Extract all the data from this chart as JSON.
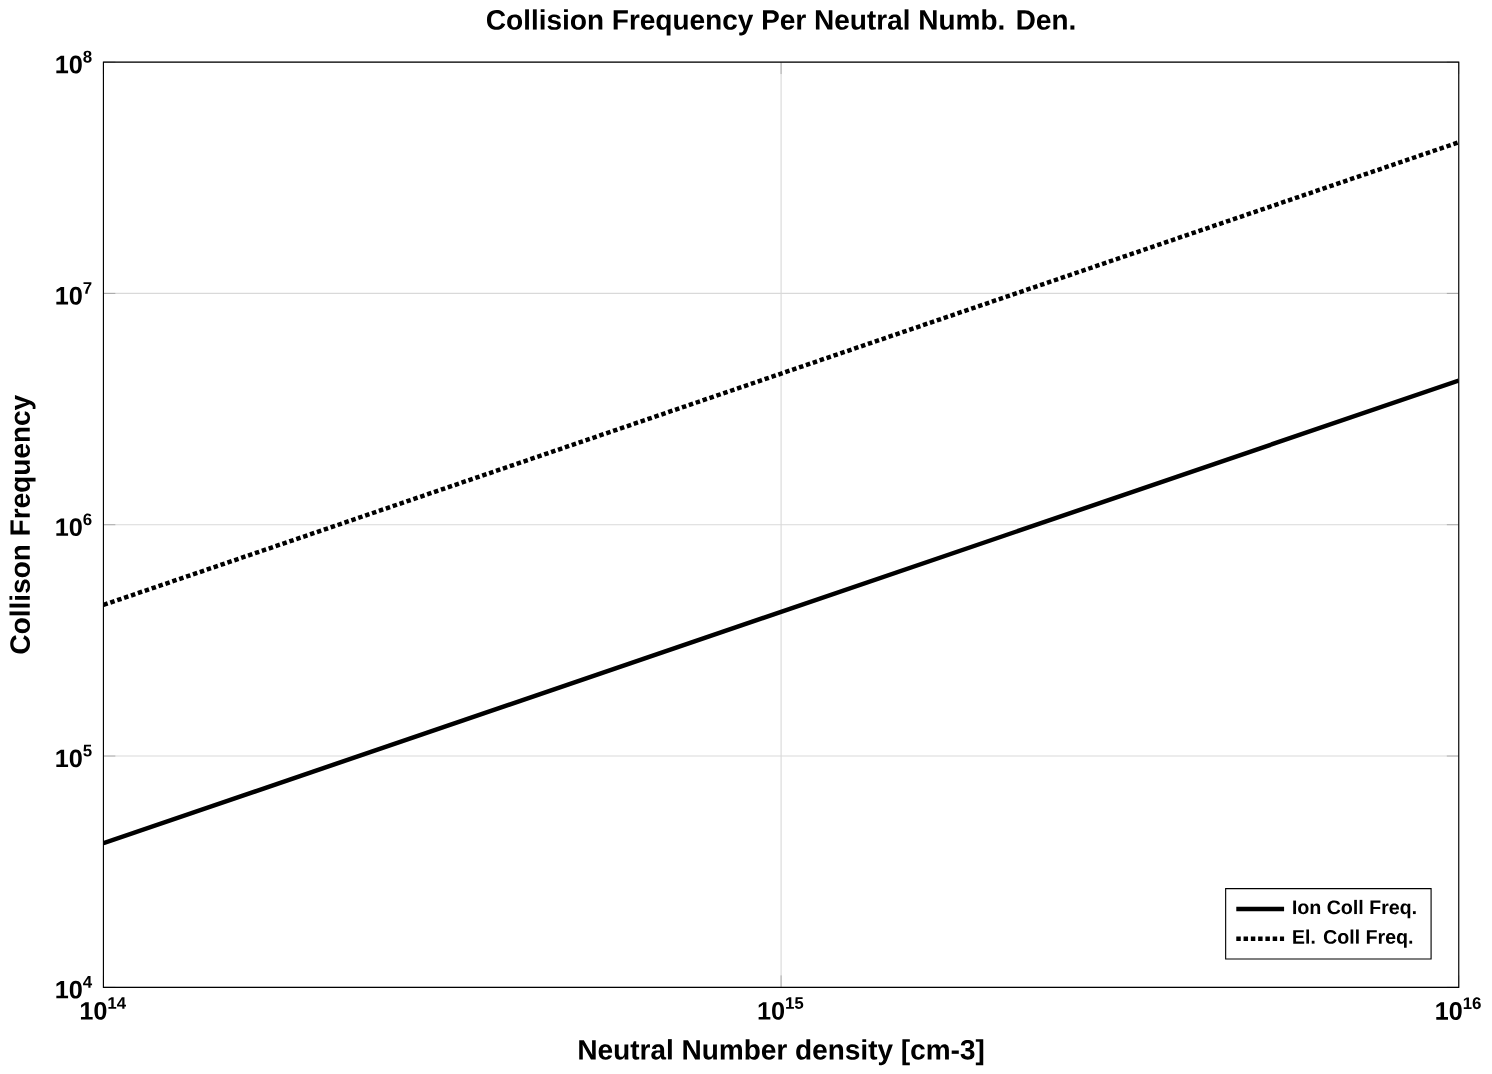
{
  "chart_data": {
    "type": "line",
    "title": "Collision Frequency Per Neutral Numb. Den.",
    "xlabel": "Neutral Number density [cm-3]",
    "ylabel": "Collison Frequency",
    "x": [
      100000000000000.0,
      1000000000000000.0,
      1e+16
    ],
    "series": [
      {
        "name": "Ion Coll Freq.",
        "color": "#000000",
        "line_style": "solid",
        "values": [
          42000.0,
          420000.0,
          4200000.0
        ]
      },
      {
        "name": "El. Coll Freq.",
        "color": "#000000",
        "line_style": "dotted",
        "values": [
          450000.0,
          4500000.0,
          45000000.0
        ]
      }
    ],
    "log": "xy",
    "xlim": [
      100000000000000.0,
      1e+16
    ],
    "ylim": [
      10000.0,
      100000000.0
    ],
    "xticks": [
      {
        "value": 100000000000000.0,
        "label": "10$^{14}$"
      },
      {
        "value": 1000000000000000.0,
        "label": "10$^{15}$"
      },
      {
        "value": 1e+16,
        "label": "10$^{16}$"
      }
    ],
    "yticks": [
      {
        "value": 10000.0,
        "label": "10$^{4}$"
      },
      {
        "value": 100000.0,
        "label": "10$^{5}$"
      },
      {
        "value": 1000000.0,
        "label": "10$^{6}$"
      },
      {
        "value": 10000000.0,
        "label": "10$^{7}$"
      },
      {
        "value": 100000000.0,
        "label": "10$^{8}$"
      }
    ],
    "grid": true,
    "legend": "bottom right",
    "marker": "none"
  }
}
